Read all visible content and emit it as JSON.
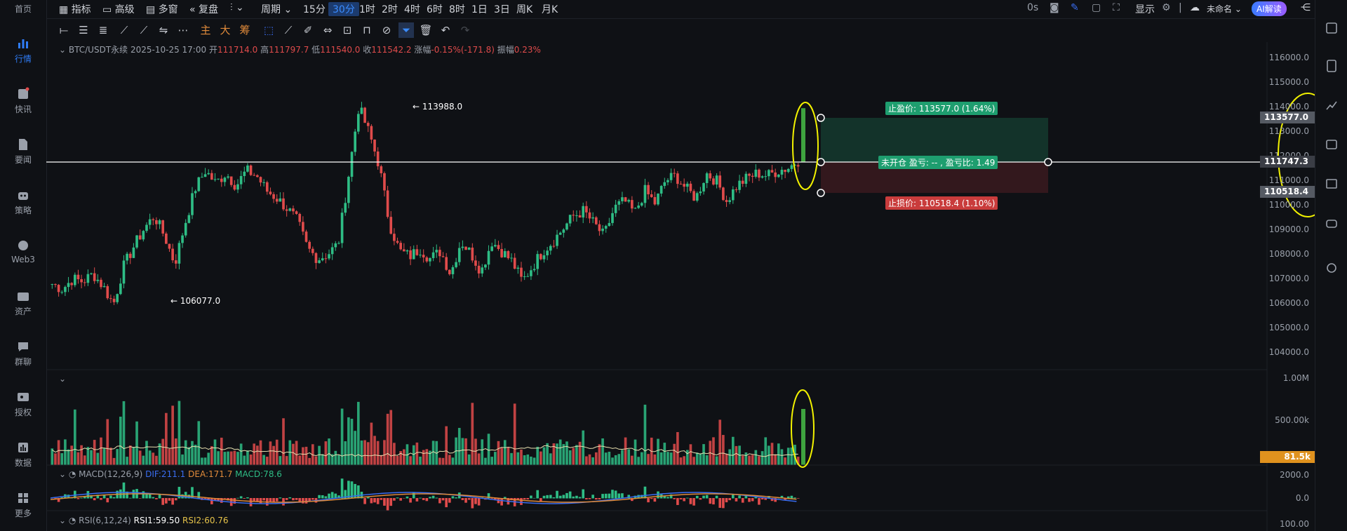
{
  "nav": {
    "items": [
      {
        "label": "首页",
        "icon": "home-icon"
      },
      {
        "label": "行情",
        "icon": "chart-bars-icon",
        "active": true
      },
      {
        "label": "快讯",
        "icon": "news-icon"
      },
      {
        "label": "要闻",
        "icon": "document-icon"
      },
      {
        "label": "策略",
        "icon": "robot-icon"
      },
      {
        "label": "Web3",
        "icon": "web3-icon"
      },
      {
        "label": "资产",
        "icon": "wallet-icon"
      },
      {
        "label": "群聊",
        "icon": "chat-icon"
      },
      {
        "label": "授权",
        "icon": "key-icon"
      },
      {
        "label": "数据",
        "icon": "data-icon"
      },
      {
        "label": "更多",
        "icon": "grid-icon"
      }
    ]
  },
  "topbar": {
    "indicators": "指标",
    "advanced": "高级",
    "multiwindow": "多窗",
    "replay": "复盘",
    "period": "周期",
    "intervals": [
      "15分",
      "30分",
      "1时",
      "2时",
      "4时",
      "6时",
      "8时",
      "1日",
      "3日",
      "周K",
      "月K"
    ],
    "active_interval": "30分",
    "countdown": "0s",
    "display": "显示",
    "unnamed": "未命名",
    "ai": "AI解读"
  },
  "drawbar": {
    "main": "主",
    "big": "大",
    "chips": "筹"
  },
  "symbol": {
    "name": "BTC/USDT永续",
    "datetime": "2025-10-25 17:00",
    "open_label": "开",
    "open": "111714.0",
    "high_label": "高",
    "high": "111797.7",
    "low_label": "低",
    "low": "111540.0",
    "close_label": "收",
    "close": "111542.2",
    "change_label": "涨幅",
    "change": "-0.15%(-171.8)",
    "amp_label": "振幅",
    "amp": "0.23%"
  },
  "annotations": {
    "high_marker": "← 113988.0",
    "low_marker": "← 106077.0",
    "take_profit": "止盈价: 113577.0 (1.64%)",
    "stop_loss": "止损价: 110518.4 (1.10%)",
    "position": "未开仓 盈亏: -- , 盈亏比: 1.49"
  },
  "price_axis": [
    "116000.0",
    "115000.0",
    "114000.0",
    "113000.0",
    "112000.0",
    "111000.0",
    "110000.0",
    "109000.0",
    "108000.0",
    "107000.0",
    "106000.0",
    "105000.0",
    "104000.0"
  ],
  "price_tags": {
    "take_profit": "113577.0",
    "current": "111747.3",
    "stop_loss": "110518.4"
  },
  "volume_axis": [
    "1.00M",
    "500.00k"
  ],
  "volume_tag": "81.5k",
  "macd": {
    "label": "MACD(12,26,9)",
    "dif": "DIF:211.1",
    "dea": "DEA:171.7",
    "macd": "MACD:78.6",
    "axis": [
      "2000.0",
      "0.0"
    ]
  },
  "rsi": {
    "label": "RSI(6,12,24)",
    "rsi1": "RSI1:59.50",
    "rsi2": "RSI2:60.76",
    "axis": [
      "100.00"
    ]
  },
  "colors": {
    "up": "#2ebd85",
    "down": "#e04b4b",
    "accent": "#2f7cf6",
    "highlight": "#f2f200"
  },
  "chart_data": {
    "type": "candlestick",
    "ylim": [
      103500,
      116500
    ],
    "current_price": 111747.3,
    "take_profit": 113577.0,
    "stop_loss": 110518.4,
    "high": 113988.0,
    "low": 106077.0,
    "price_path": [
      106900,
      106700,
      107100,
      107000,
      107300,
      106800,
      106100,
      107600,
      108400,
      109100,
      109600,
      108800,
      107700,
      109300,
      110700,
      111400,
      110900,
      111300,
      110800,
      111400,
      111200,
      110600,
      110300,
      109900,
      109400,
      108300,
      107900,
      108100,
      108500,
      111200,
      113950,
      112900,
      111600,
      109300,
      108200,
      108000,
      108300,
      107900,
      108200,
      107300,
      108600,
      108100,
      107400,
      108600,
      108200,
      107800,
      107000,
      107600,
      108200,
      108600,
      109100,
      109600,
      109800,
      109300,
      108800,
      109900,
      110200,
      109700,
      110600,
      110100,
      111000,
      111200,
      110700,
      110300,
      111300,
      111000,
      110200,
      110800,
      111100,
      111300,
      111200,
      111400,
      111500,
      111800
    ]
  }
}
